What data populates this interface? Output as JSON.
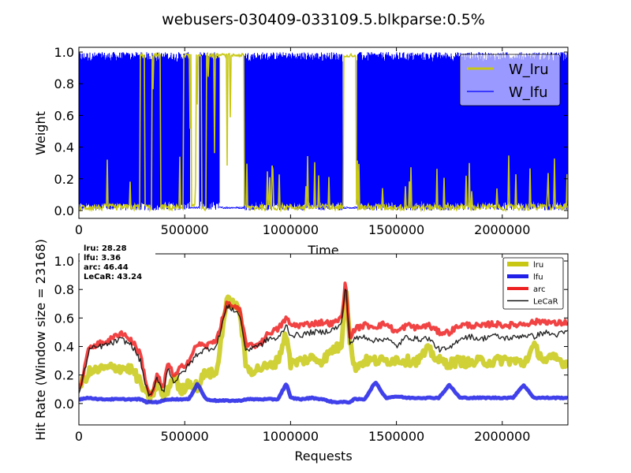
{
  "figure": {
    "suptitle": "webusers-030409-033109.5.blkparse:0.5%"
  },
  "colors": {
    "lru": "#c8c814",
    "lfu": "#0000ff",
    "arc": "#ee2222",
    "lecar": "#111111",
    "lfu_hit": "#2020e8"
  },
  "chart_data": [
    {
      "type": "line",
      "title": "",
      "xlabel": "Time",
      "ylabel": "Weight",
      "xlim": [
        0,
        2310000
      ],
      "ylim": [
        -0.05,
        1.03
      ],
      "xticks": [
        0,
        500000,
        1000000,
        1500000,
        2000000
      ],
      "xtick_labels": [
        "0",
        "500000",
        "1000000",
        "1500000",
        "2000000"
      ],
      "yticks": [
        0.0,
        0.2,
        0.4,
        0.6,
        0.8,
        1.0
      ],
      "ytick_labels": [
        "0.0",
        "0.2",
        "0.4",
        "0.6",
        "0.8",
        "1.0"
      ],
      "legend_placement": "top-right",
      "series": [
        {
          "name": "W_lru",
          "color": "#c8c814",
          "description": "mostly near 0 with spikes; pinned near 1.0 in ranges",
          "high_ranges": [
            [
              290000,
              310000
            ],
            [
              345000,
              385000
            ],
            [
              495000,
              530000
            ],
            [
              555000,
              580000
            ],
            [
              600000,
              780000
            ],
            [
              1250000,
              1310000
            ]
          ]
        },
        {
          "name": "W_lfu",
          "color": "#0000ff",
          "description": "dense oscillation between 0 and 1, with gaps where W_lfu near 0",
          "gaps": [
            [
              525000,
              570000
            ],
            [
              665000,
              780000
            ],
            [
              1245000,
              1315000
            ]
          ]
        }
      ]
    },
    {
      "type": "line",
      "title": "",
      "xlabel": "Requests",
      "ylabel": "Hit Rate (Window size = 23168)",
      "xlim": [
        0,
        2310000
      ],
      "ylim": [
        -0.15,
        1.05
      ],
      "xticks": [
        0,
        500000,
        1000000,
        1500000,
        2000000
      ],
      "xtick_labels": [
        "0",
        "500000",
        "1000000",
        "1500000",
        "2000000"
      ],
      "yticks": [
        0.0,
        0.2,
        0.4,
        0.6,
        0.8,
        1.0
      ],
      "ytick_labels": [
        "0.0",
        "0.2",
        "0.4",
        "0.6",
        "0.8",
        "1.0"
      ],
      "legend_placement": "top-right",
      "stats": [
        {
          "label": "lru:",
          "value": "28.28"
        },
        {
          "label": "lfu:",
          "value": "3.36"
        },
        {
          "label": "arc:",
          "value": "46.44"
        },
        {
          "label": "LeCaR:",
          "value": "43.24"
        }
      ],
      "x": [
        0,
        50000,
        100000,
        150000,
        200000,
        250000,
        290000,
        320000,
        340000,
        370000,
        400000,
        420000,
        450000,
        480000,
        520000,
        560000,
        600000,
        650000,
        680000,
        700000,
        730000,
        760000,
        790000,
        820000,
        860000,
        900000,
        940000,
        980000,
        1000000,
        1050000,
        1100000,
        1150000,
        1200000,
        1240000,
        1260000,
        1280000,
        1300000,
        1350000,
        1400000,
        1450000,
        1500000,
        1550000,
        1600000,
        1650000,
        1700000,
        1750000,
        1800000,
        1850000,
        1900000,
        1950000,
        2000000,
        2050000,
        2100000,
        2150000,
        2200000,
        2250000,
        2300000
      ],
      "series": [
        {
          "name": "lru",
          "color": "#c8c814",
          "values": [
            0.12,
            0.22,
            0.24,
            0.25,
            0.25,
            0.24,
            0.15,
            0.05,
            0.04,
            0.14,
            0.04,
            0.1,
            0.2,
            0.08,
            0.15,
            0.12,
            0.22,
            0.2,
            0.55,
            0.72,
            0.7,
            0.65,
            0.25,
            0.23,
            0.25,
            0.26,
            0.3,
            0.5,
            0.28,
            0.3,
            0.32,
            0.3,
            0.38,
            0.4,
            0.85,
            0.45,
            0.25,
            0.3,
            0.3,
            0.3,
            0.31,
            0.3,
            0.3,
            0.38,
            0.3,
            0.28,
            0.3,
            0.28,
            0.3,
            0.29,
            0.31,
            0.3,
            0.28,
            0.4,
            0.3,
            0.32,
            0.28
          ]
        },
        {
          "name": "lfu",
          "color": "#2020e8",
          "values": [
            0.03,
            0.04,
            0.03,
            0.03,
            0.03,
            0.03,
            0.03,
            0.01,
            0.01,
            0.01,
            0.02,
            0.03,
            0.03,
            0.03,
            0.03,
            0.14,
            0.03,
            0.02,
            0.02,
            0.02,
            0.02,
            0.02,
            0.03,
            0.03,
            0.03,
            0.03,
            0.03,
            0.14,
            0.04,
            0.03,
            0.04,
            0.03,
            0.01,
            0.01,
            0.01,
            0.01,
            0.03,
            0.03,
            0.15,
            0.04,
            0.05,
            0.04,
            0.04,
            0.04,
            0.04,
            0.13,
            0.04,
            0.04,
            0.04,
            0.04,
            0.04,
            0.04,
            0.13,
            0.04,
            0.04,
            0.04,
            0.04
          ]
        },
        {
          "name": "arc",
          "color": "#ee2222",
          "values": [
            0.08,
            0.4,
            0.42,
            0.45,
            0.5,
            0.44,
            0.35,
            0.13,
            0.04,
            0.2,
            0.1,
            0.3,
            0.18,
            0.25,
            0.3,
            0.42,
            0.4,
            0.45,
            0.6,
            0.7,
            0.68,
            0.65,
            0.42,
            0.4,
            0.43,
            0.5,
            0.52,
            0.6,
            0.55,
            0.55,
            0.56,
            0.57,
            0.56,
            0.6,
            0.86,
            0.45,
            0.52,
            0.55,
            0.54,
            0.56,
            0.5,
            0.55,
            0.53,
            0.55,
            0.5,
            0.5,
            0.55,
            0.55,
            0.54,
            0.56,
            0.55,
            0.55,
            0.56,
            0.57,
            0.58,
            0.56,
            0.57
          ]
        },
        {
          "name": "LeCaR",
          "color": "#111111",
          "values": [
            0.06,
            0.38,
            0.4,
            0.42,
            0.45,
            0.41,
            0.3,
            0.1,
            0.04,
            0.18,
            0.08,
            0.25,
            0.15,
            0.2,
            0.27,
            0.35,
            0.38,
            0.4,
            0.58,
            0.68,
            0.66,
            0.62,
            0.36,
            0.4,
            0.41,
            0.46,
            0.45,
            0.55,
            0.48,
            0.48,
            0.5,
            0.5,
            0.52,
            0.55,
            0.84,
            0.42,
            0.45,
            0.47,
            0.44,
            0.46,
            0.4,
            0.47,
            0.45,
            0.46,
            0.38,
            0.38,
            0.46,
            0.47,
            0.45,
            0.48,
            0.46,
            0.46,
            0.48,
            0.47,
            0.5,
            0.48,
            0.5
          ]
        }
      ]
    }
  ]
}
